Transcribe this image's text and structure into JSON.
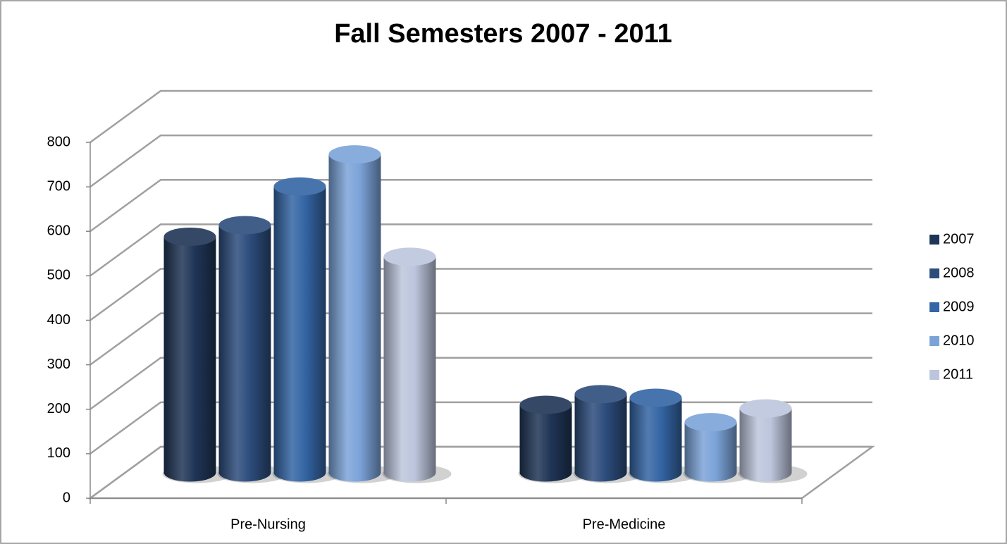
{
  "chart_data": {
    "type": "bar3d",
    "title": "Fall Semesters 2007 - 2011",
    "categories": [
      "Pre-Nursing",
      "Pre-Medicine"
    ],
    "series": [
      {
        "name": "2007",
        "color": "#1f3556",
        "values": [
          530,
          152
        ]
      },
      {
        "name": "2008",
        "color": "#2c4c7c",
        "values": [
          556,
          176
        ]
      },
      {
        "name": "2009",
        "color": "#3465a4",
        "values": [
          643,
          168
        ]
      },
      {
        "name": "2010",
        "color": "#7ba3d8",
        "values": [
          715,
          113
        ]
      },
      {
        "name": "2011",
        "color": "#bcc5dc",
        "values": [
          485,
          144
        ]
      }
    ],
    "ylim": [
      0,
      800
    ],
    "yticks": [
      0,
      100,
      200,
      300,
      400,
      500,
      600,
      700,
      800
    ],
    "grid": true,
    "legend": "right"
  }
}
